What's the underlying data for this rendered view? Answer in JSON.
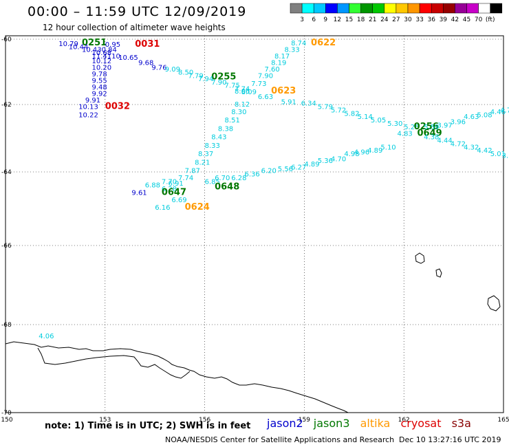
{
  "header": {
    "title": "00:00 – 11:59 UTC 12/09/2019",
    "subtitle": "12 hour collection of altimeter wave heights"
  },
  "colorbar": {
    "colors": [
      "#808080",
      "#00ffff",
      "#00c8ff",
      "#0000ff",
      "#0096ff",
      "#32ff32",
      "#009600",
      "#00c800",
      "#ffff00",
      "#ffc800",
      "#ff9600",
      "#ff0000",
      "#c80000",
      "#960000",
      "#960096",
      "#c800c8",
      "#ffffff",
      "#000000"
    ],
    "labels": [
      "3",
      "6",
      "9",
      "12",
      "15",
      "18",
      "21",
      "24",
      "27",
      "30",
      "33",
      "36",
      "39",
      "42",
      "45",
      "70",
      "(ft)"
    ]
  },
  "axes": {
    "lon_ticks": [
      "150",
      "153",
      "156",
      "159",
      "162",
      "165"
    ],
    "lat_ticks": [
      "-60",
      "-62",
      "-64",
      "-66",
      "-68",
      "-70"
    ]
  },
  "palette": {
    "jason2": "#0000cc",
    "jason3": "#007700",
    "altika": "#ff9900",
    "cryosat": "#dd0000",
    "s3a": "#880000",
    "wave": "#00ccdd",
    "coast": "#000000",
    "grid": "#000000"
  },
  "labels": [
    {
      "t": "10.79",
      "lon": 151.6,
      "lat": -60.13,
      "c": "jason2"
    },
    {
      "t": "0251",
      "lon": 152.3,
      "lat": -60.1,
      "c": "jason3",
      "b": 1
    },
    {
      "t": "0.95",
      "lon": 153.0,
      "lat": -60.15,
      "c": "jason2"
    },
    {
      "t": "0031",
      "lon": 153.9,
      "lat": -60.15,
      "c": "cryosat",
      "b": 1
    },
    {
      "t": "10.44",
      "lon": 151.9,
      "lat": -60.22,
      "c": "jason2"
    },
    {
      "t": "10.430.84",
      "lon": 152.3,
      "lat": -60.3,
      "c": "jason2"
    },
    {
      "t": "10.68",
      "lon": 152.6,
      "lat": -60.4,
      "c": "jason2"
    },
    {
      "t": "11.4110",
      "lon": 152.6,
      "lat": -60.5,
      "c": "jason2"
    },
    {
      "t": "10.65",
      "lon": 153.4,
      "lat": -60.55,
      "c": "jason2"
    },
    {
      "t": "10.12",
      "lon": 152.6,
      "lat": -60.65,
      "c": "jason2"
    },
    {
      "t": "9.68",
      "lon": 154.0,
      "lat": -60.7,
      "c": "jason2"
    },
    {
      "t": "10.20",
      "lon": 152.6,
      "lat": -60.85,
      "c": "jason2"
    },
    {
      "t": "9.76",
      "lon": 154.4,
      "lat": -60.85,
      "c": "jason2"
    },
    {
      "t": "9.09",
      "lon": 154.8,
      "lat": -60.9,
      "c": "wave"
    },
    {
      "t": "9.78",
      "lon": 152.6,
      "lat": -61.05,
      "c": "jason2"
    },
    {
      "t": "8.50",
      "lon": 155.2,
      "lat": -61.0,
      "c": "wave"
    },
    {
      "t": "7.79",
      "lon": 155.5,
      "lat": -61.1,
      "c": "wave"
    },
    {
      "t": "0255",
      "lon": 156.2,
      "lat": -61.15,
      "c": "jason3",
      "b": 1
    },
    {
      "t": "9.55",
      "lon": 152.6,
      "lat": -61.25,
      "c": "jason2"
    },
    {
      "t": "7.94",
      "lon": 155.8,
      "lat": -61.2,
      "c": "wave"
    },
    {
      "t": "7.90",
      "lon": 156.2,
      "lat": -61.3,
      "c": "wave"
    },
    {
      "t": "9.48",
      "lon": 152.6,
      "lat": -61.45,
      "c": "jason2"
    },
    {
      "t": "7.75",
      "lon": 156.6,
      "lat": -61.4,
      "c": "wave"
    },
    {
      "t": "7.74",
      "lon": 156.9,
      "lat": -61.5,
      "c": "wave"
    },
    {
      "t": "9.92",
      "lon": 152.6,
      "lat": -61.65,
      "c": "jason2"
    },
    {
      "t": "8.09",
      "lon": 157.1,
      "lat": -61.6,
      "c": "wave"
    },
    {
      "t": "6.63",
      "lon": 157.6,
      "lat": -61.75,
      "c": "wave"
    },
    {
      "t": "9.91",
      "lon": 152.4,
      "lat": -61.85,
      "c": "jason2"
    },
    {
      "t": "10.13",
      "lon": 152.2,
      "lat": -62.05,
      "c": "jason2"
    },
    {
      "t": "0032",
      "lon": 153.0,
      "lat": -62.05,
      "c": "cryosat",
      "b": 1
    },
    {
      "t": "10.22",
      "lon": 152.2,
      "lat": -62.3,
      "c": "jason2"
    },
    {
      "t": "8.74",
      "lon": 158.6,
      "lat": -60.1,
      "c": "wave"
    },
    {
      "t": "0622",
      "lon": 159.2,
      "lat": -60.1,
      "c": "altika",
      "b": 1
    },
    {
      "t": "8.33",
      "lon": 158.4,
      "lat": -60.3,
      "c": "wave"
    },
    {
      "t": "8.17",
      "lon": 158.1,
      "lat": -60.5,
      "c": "wave"
    },
    {
      "t": "8.19",
      "lon": 158.0,
      "lat": -60.7,
      "c": "wave"
    },
    {
      "t": "7.60",
      "lon": 157.8,
      "lat": -60.9,
      "c": "wave"
    },
    {
      "t": "7.90",
      "lon": 157.6,
      "lat": -61.1,
      "c": "wave"
    },
    {
      "t": "7.73",
      "lon": 157.4,
      "lat": -61.35,
      "c": "wave"
    },
    {
      "t": "8.06",
      "lon": 156.9,
      "lat": -61.58,
      "c": "wave"
    },
    {
      "t": "0623",
      "lon": 158.0,
      "lat": -61.58,
      "c": "altika",
      "b": 1
    },
    {
      "t": "8.12",
      "lon": 156.9,
      "lat": -61.98,
      "c": "wave"
    },
    {
      "t": "8.30",
      "lon": 156.8,
      "lat": -62.2,
      "c": "wave"
    },
    {
      "t": "8.51",
      "lon": 156.6,
      "lat": -62.45,
      "c": "wave"
    },
    {
      "t": "8.38",
      "lon": 156.4,
      "lat": -62.7,
      "c": "wave"
    },
    {
      "t": "8.43",
      "lon": 156.2,
      "lat": -62.95,
      "c": "wave"
    },
    {
      "t": "8.33",
      "lon": 156.0,
      "lat": -63.2,
      "c": "wave"
    },
    {
      "t": "8.37",
      "lon": 155.8,
      "lat": -63.45,
      "c": "wave"
    },
    {
      "t": "8.21",
      "lon": 155.7,
      "lat": -63.7,
      "c": "wave"
    },
    {
      "t": "7.87",
      "lon": 155.4,
      "lat": -63.95,
      "c": "wave"
    },
    {
      "t": "7.74",
      "lon": 155.2,
      "lat": -64.15,
      "c": "wave"
    },
    {
      "t": "6.91",
      "lon": 154.9,
      "lat": -64.3,
      "c": "wave"
    },
    {
      "t": "7.70",
      "lon": 154.7,
      "lat": -64.25,
      "c": "wave"
    },
    {
      "t": "6.28",
      "lon": 154.7,
      "lat": -64.45,
      "c": "wave"
    },
    {
      "t": "6.88",
      "lon": 154.2,
      "lat": -64.35,
      "c": "wave"
    },
    {
      "t": "9.61",
      "lon": 153.8,
      "lat": -64.55,
      "c": "jason2"
    },
    {
      "t": "0647",
      "lon": 154.7,
      "lat": -64.55,
      "c": "jason3",
      "b": 1
    },
    {
      "t": "6.69",
      "lon": 155.0,
      "lat": -64.75,
      "c": "wave"
    },
    {
      "t": "6.16",
      "lon": 154.5,
      "lat": -64.95,
      "c": "wave"
    },
    {
      "t": "0624",
      "lon": 155.4,
      "lat": -64.95,
      "c": "altika",
      "b": 1
    },
    {
      "t": "6.85",
      "lon": 156.0,
      "lat": -64.25,
      "c": "wave"
    },
    {
      "t": "6.70",
      "lon": 156.3,
      "lat": -64.15,
      "c": "wave"
    },
    {
      "t": "0648",
      "lon": 156.3,
      "lat": -64.4,
      "c": "jason3",
      "b": 1
    },
    {
      "t": "6.28",
      "lon": 156.8,
      "lat": -64.15,
      "c": "wave"
    },
    {
      "t": "6.36",
      "lon": 157.2,
      "lat": -64.05,
      "c": "wave"
    },
    {
      "t": "6.20",
      "lon": 157.7,
      "lat": -63.95,
      "c": "wave"
    },
    {
      "t": "5.56",
      "lon": 158.2,
      "lat": -63.9,
      "c": "wave"
    },
    {
      "t": "6.27",
      "lon": 158.6,
      "lat": -63.85,
      "c": "wave"
    },
    {
      "t": "4.89",
      "lon": 159.0,
      "lat": -63.75,
      "c": "wave"
    },
    {
      "t": "5.36",
      "lon": 159.4,
      "lat": -63.65,
      "c": "wave"
    },
    {
      "t": "4.70",
      "lon": 159.8,
      "lat": -63.6,
      "c": "wave"
    },
    {
      "t": "4.98",
      "lon": 160.2,
      "lat": -63.45,
      "c": "wave"
    },
    {
      "t": "4.96",
      "lon": 160.5,
      "lat": -63.4,
      "c": "wave"
    },
    {
      "t": "4.89",
      "lon": 160.9,
      "lat": -63.35,
      "c": "wave"
    },
    {
      "t": "5.10",
      "lon": 161.3,
      "lat": -63.25,
      "c": "wave"
    },
    {
      "t": "5.91",
      "lon": 158.3,
      "lat": -61.9,
      "c": "wave"
    },
    {
      "t": "6.34",
      "lon": 158.9,
      "lat": -61.95,
      "c": "wave"
    },
    {
      "t": "5.79",
      "lon": 159.4,
      "lat": -62.05,
      "c": "wave"
    },
    {
      "t": "5.72",
      "lon": 159.8,
      "lat": -62.15,
      "c": "wave"
    },
    {
      "t": "5.82",
      "lon": 160.2,
      "lat": -62.25,
      "c": "wave"
    },
    {
      "t": "5.14",
      "lon": 160.6,
      "lat": -62.35,
      "c": "wave"
    },
    {
      "t": "5.05",
      "lon": 161.0,
      "lat": -62.45,
      "c": "wave"
    },
    {
      "t": "5.30",
      "lon": 161.5,
      "lat": -62.55,
      "c": "wave"
    },
    {
      "t": "5.25",
      "lon": 162.0,
      "lat": -62.65,
      "c": "wave"
    },
    {
      "t": "0256",
      "lon": 162.3,
      "lat": -62.65,
      "c": "jason3",
      "b": 1
    },
    {
      "t": "4.83",
      "lon": 161.8,
      "lat": -62.85,
      "c": "wave"
    },
    {
      "t": "5.59",
      "lon": 162.6,
      "lat": -62.65,
      "c": "wave"
    },
    {
      "t": "3.97",
      "lon": 163.0,
      "lat": -62.6,
      "c": "wave"
    },
    {
      "t": "3.96",
      "lon": 163.4,
      "lat": -62.5,
      "c": "wave"
    },
    {
      "t": "4.63",
      "lon": 163.8,
      "lat": -62.35,
      "c": "wave"
    },
    {
      "t": "5.08",
      "lon": 164.2,
      "lat": -62.3,
      "c": "wave"
    },
    {
      "t": "4.46",
      "lon": 164.6,
      "lat": -62.2,
      "c": "wave"
    },
    {
      "t": "4.7",
      "lon": 164.9,
      "lat": -62.15,
      "c": "wave"
    },
    {
      "t": "0649",
      "lon": 162.4,
      "lat": -62.85,
      "c": "jason3",
      "b": 1
    },
    {
      "t": "4.38",
      "lon": 162.6,
      "lat": -62.95,
      "c": "wave"
    },
    {
      "t": "4.44",
      "lon": 163.0,
      "lat": -63.05,
      "c": "wave"
    },
    {
      "t": "4.72",
      "lon": 163.4,
      "lat": -63.15,
      "c": "wave"
    },
    {
      "t": "4.32",
      "lon": 163.8,
      "lat": -63.25,
      "c": "wave"
    },
    {
      "t": "4.42",
      "lon": 164.2,
      "lat": -63.35,
      "c": "wave"
    },
    {
      "t": "5.01",
      "lon": 164.6,
      "lat": -63.45,
      "c": "wave"
    },
    {
      "t": "3.",
      "lon": 164.95,
      "lat": -63.5,
      "c": "wave"
    },
    {
      "t": "4.06",
      "lon": 151.0,
      "lat": -68.25,
      "c": "wave"
    }
  ],
  "footer": {
    "note": "note: 1) Time is in UTC; 2) SWH is in feet",
    "satellites": [
      {
        "name": "jason2",
        "c": "jason2"
      },
      {
        "name": "jason3",
        "c": "jason3"
      },
      {
        "name": "altika",
        "c": "altika"
      },
      {
        "name": "cryosat",
        "c": "cryosat"
      },
      {
        "name": "s3a",
        "c": "s3a"
      }
    ],
    "credit": "NOAA/NESDIS Center for Satellite Applications and Research",
    "timestamp": "Dec 10 13:27:16 UTC 2019"
  }
}
